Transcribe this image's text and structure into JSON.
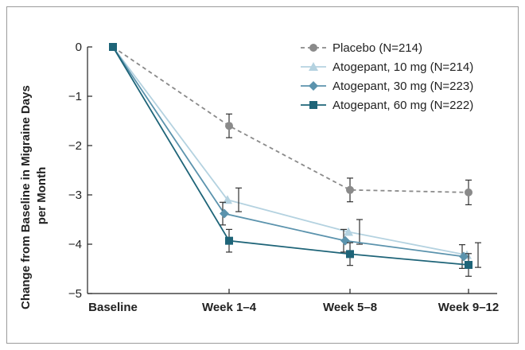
{
  "chart_data": {
    "type": "line",
    "title": "",
    "ylabel_lines": [
      "Change from Baseline in Migraine Days",
      "per Month"
    ],
    "xlabel": "",
    "categories": [
      "Baseline",
      "Week 1–4",
      "Week 5–8",
      "Week 9–12"
    ],
    "yticks": [
      "0",
      "−1",
      "−2",
      "−3",
      "−4",
      "−5"
    ],
    "ylim": [
      -5,
      0
    ],
    "series": [
      {
        "name": "Placebo (N=214)",
        "color": "#8a8a8a",
        "dashed": true,
        "marker": "circle",
        "values": [
          0,
          -1.6,
          -2.9,
          -2.95
        ],
        "err": [
          0,
          0.24,
          0.24,
          0.25
        ]
      },
      {
        "name": "Atogepant, 10 mg (N=214)",
        "color": "#b4d2e0",
        "dashed": false,
        "marker": "triangle",
        "values": [
          0,
          -3.1,
          -3.75,
          -4.22
        ],
        "err": [
          0,
          0.24,
          0.25,
          0.25
        ]
      },
      {
        "name": "Atogepant, 30 mg (N=223)",
        "color": "#5b93ad",
        "dashed": false,
        "marker": "diamond",
        "values": [
          0,
          -3.38,
          -3.93,
          -4.25
        ],
        "err": [
          0,
          0.23,
          0.23,
          0.24
        ]
      },
      {
        "name": "Atogepant, 60 mg (N=222)",
        "color": "#1e6478",
        "dashed": false,
        "marker": "square",
        "values": [
          0,
          -3.93,
          -4.2,
          -4.42
        ],
        "err": [
          0,
          0.23,
          0.23,
          0.23
        ]
      }
    ]
  }
}
